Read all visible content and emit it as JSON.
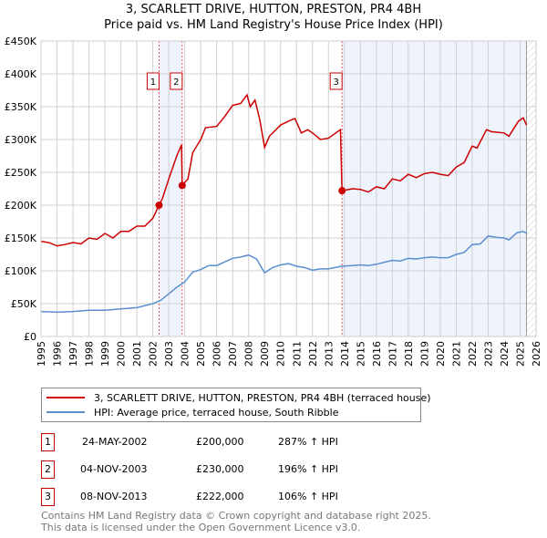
{
  "title": "3, SCARLETT DRIVE, HUTTON, PRESTON, PR4 4BH",
  "subtitle": "Price paid vs. HM Land Registry's House Price Index (HPI)",
  "chart_data": {
    "type": "line",
    "xlim": [
      1995,
      2026
    ],
    "ylim": [
      0,
      450000
    ],
    "yticks": [
      {
        "v": 0,
        "l": "£0"
      },
      {
        "v": 50000,
        "l": "£50K"
      },
      {
        "v": 100000,
        "l": "£100K"
      },
      {
        "v": 150000,
        "l": "£150K"
      },
      {
        "v": 200000,
        "l": "£200K"
      },
      {
        "v": 250000,
        "l": "£250K"
      },
      {
        "v": 300000,
        "l": "£300K"
      },
      {
        "v": 350000,
        "l": "£350K"
      },
      {
        "v": 400000,
        "l": "£400K"
      },
      {
        "v": 450000,
        "l": "£450K"
      }
    ],
    "xticks": [
      "1995",
      "1996",
      "1997",
      "1998",
      "1999",
      "2000",
      "2001",
      "2002",
      "2003",
      "2004",
      "2005",
      "2006",
      "2007",
      "2008",
      "2009",
      "2010",
      "2011",
      "2012",
      "2013",
      "2014",
      "2015",
      "2016",
      "2017",
      "2018",
      "2019",
      "2020",
      "2021",
      "2022",
      "2023",
      "2024",
      "2025",
      "2026"
    ],
    "grid": true,
    "shaded_ranges": [
      [
        2002.39,
        2003.84
      ],
      [
        2013.85,
        2025.4
      ]
    ],
    "future_hatch_from": 2025.4,
    "series": [
      {
        "name": "3, SCARLETT DRIVE, HUTTON, PRESTON, PR4 4BH (terraced house)",
        "color": "#cc0000",
        "points": [
          [
            1995,
            145
          ],
          [
            1995.5,
            143
          ],
          [
            1996,
            138
          ],
          [
            1996.5,
            140
          ],
          [
            1997,
            143
          ],
          [
            1997.5,
            141
          ],
          [
            1998,
            150
          ],
          [
            1998.5,
            148
          ],
          [
            1999,
            157
          ],
          [
            1999.5,
            150
          ],
          [
            2000,
            160
          ],
          [
            2000.5,
            160
          ],
          [
            2001,
            168
          ],
          [
            2001.5,
            168
          ],
          [
            2002,
            180
          ],
          [
            2002.39,
            200
          ],
          [
            2002.6,
            210
          ],
          [
            2003,
            240
          ],
          [
            2003.5,
            275
          ],
          [
            2003.8,
            292
          ],
          [
            2003.84,
            230
          ],
          [
            2004.2,
            240
          ],
          [
            2004.5,
            280
          ],
          [
            2005,
            300
          ],
          [
            2005.3,
            318
          ],
          [
            2006,
            320
          ],
          [
            2006.5,
            335
          ],
          [
            2007,
            352
          ],
          [
            2007.5,
            355
          ],
          [
            2007.9,
            368
          ],
          [
            2008.1,
            350
          ],
          [
            2008.4,
            360
          ],
          [
            2008.7,
            330
          ],
          [
            2009,
            288
          ],
          [
            2009.3,
            305
          ],
          [
            2010,
            322
          ],
          [
            2010.5,
            328
          ],
          [
            2010.9,
            332
          ],
          [
            2011.3,
            310
          ],
          [
            2011.7,
            315
          ],
          [
            2012,
            310
          ],
          [
            2012.5,
            300
          ],
          [
            2013,
            302
          ],
          [
            2013.75,
            315
          ],
          [
            2013.85,
            222
          ],
          [
            2014.5,
            225
          ],
          [
            2015,
            224
          ],
          [
            2015.5,
            220
          ],
          [
            2016,
            228
          ],
          [
            2016.5,
            225
          ],
          [
            2017,
            240
          ],
          [
            2017.5,
            237
          ],
          [
            2018,
            247
          ],
          [
            2018.5,
            242
          ],
          [
            2019,
            248
          ],
          [
            2019.5,
            250
          ],
          [
            2020,
            247
          ],
          [
            2020.5,
            245
          ],
          [
            2021,
            258
          ],
          [
            2021.5,
            265
          ],
          [
            2022,
            290
          ],
          [
            2022.3,
            287
          ],
          [
            2022.9,
            315
          ],
          [
            2023.2,
            312
          ],
          [
            2024,
            310
          ],
          [
            2024.3,
            305
          ],
          [
            2024.9,
            328
          ],
          [
            2025.2,
            333
          ],
          [
            2025.4,
            322
          ]
        ]
      },
      {
        "name": "HPI: Average price, terraced house, South Ribble",
        "color": "#5b8fd0",
        "points": [
          [
            1995,
            38
          ],
          [
            1996,
            37
          ],
          [
            1997,
            38
          ],
          [
            1998,
            40
          ],
          [
            1999,
            40
          ],
          [
            2000,
            42
          ],
          [
            2001,
            44
          ],
          [
            2002,
            50
          ],
          [
            2002.5,
            55
          ],
          [
            2003,
            65
          ],
          [
            2003.5,
            75
          ],
          [
            2004,
            83
          ],
          [
            2004.5,
            98
          ],
          [
            2005,
            102
          ],
          [
            2005.5,
            108
          ],
          [
            2006,
            108
          ],
          [
            2007,
            119
          ],
          [
            2007.5,
            121
          ],
          [
            2008,
            124
          ],
          [
            2008.5,
            118
          ],
          [
            2009,
            97
          ],
          [
            2009.5,
            105
          ],
          [
            2010,
            109
          ],
          [
            2010.5,
            111
          ],
          [
            2011,
            107
          ],
          [
            2011.5,
            105
          ],
          [
            2012,
            101
          ],
          [
            2012.5,
            103
          ],
          [
            2013,
            103
          ],
          [
            2013.8,
            107
          ],
          [
            2014.5,
            108
          ],
          [
            2015,
            109
          ],
          [
            2015.5,
            108
          ],
          [
            2016,
            110
          ],
          [
            2016.5,
            113
          ],
          [
            2017,
            116
          ],
          [
            2017.5,
            115
          ],
          [
            2018,
            119
          ],
          [
            2018.5,
            118
          ],
          [
            2019,
            120
          ],
          [
            2019.5,
            121
          ],
          [
            2020,
            120
          ],
          [
            2020.5,
            120
          ],
          [
            2021,
            125
          ],
          [
            2021.5,
            128
          ],
          [
            2022,
            140
          ],
          [
            2022.5,
            141
          ],
          [
            2023,
            153
          ],
          [
            2023.5,
            151
          ],
          [
            2024,
            150
          ],
          [
            2024.3,
            147
          ],
          [
            2024.8,
            158
          ],
          [
            2025.2,
            160
          ],
          [
            2025.4,
            157
          ]
        ]
      }
    ],
    "sales": [
      {
        "n": "1",
        "x": 2002.39,
        "y": 200000
      },
      {
        "n": "2",
        "x": 2003.84,
        "y": 230000
      },
      {
        "n": "3",
        "x": 2013.85,
        "y": 222000
      }
    ]
  },
  "legend": {
    "property": "3, SCARLETT DRIVE, HUTTON, PRESTON, PR4 4BH (terraced house)",
    "hpi": "HPI: Average price, terraced house, South Ribble"
  },
  "transactions": [
    {
      "n": "1",
      "date": "24-MAY-2002",
      "price": "£200,000",
      "hpi": "287% ↑ HPI"
    },
    {
      "n": "2",
      "date": "04-NOV-2003",
      "price": "£230,000",
      "hpi": "196% ↑ HPI"
    },
    {
      "n": "3",
      "date": "08-NOV-2013",
      "price": "£222,000",
      "hpi": "106% ↑ HPI"
    }
  ],
  "footer": [
    "Contains HM Land Registry data © Crown copyright and database right 2025.",
    "This data is licensed under the Open Government Licence v3.0."
  ]
}
